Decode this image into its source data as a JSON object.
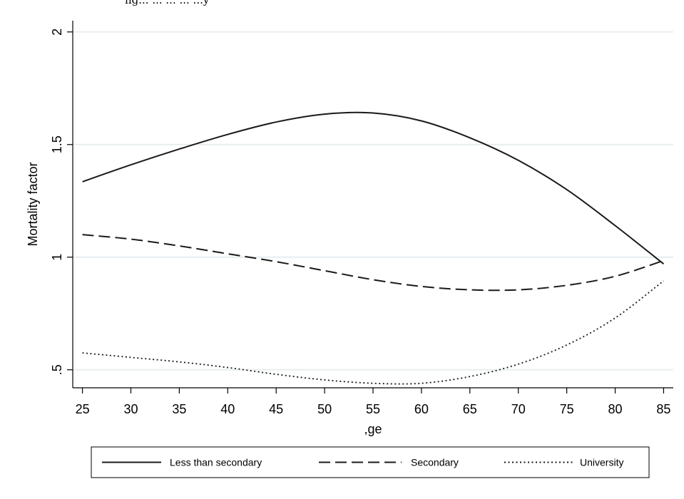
{
  "top_text": "ng... ... ... ... ...y",
  "chart_data": {
    "type": "line",
    "title": "",
    "xlabel": ",ge",
    "ylabel": "Mortality factor",
    "xlim": [
      24,
      86
    ],
    "ylim": [
      0.42,
      2.05
    ],
    "x_ticks": [
      25,
      30,
      35,
      40,
      45,
      50,
      55,
      60,
      65,
      70,
      75,
      80,
      85
    ],
    "x_tick_labels": [
      "25",
      "30",
      "35",
      "40",
      "45",
      "50",
      "55",
      "60",
      "65",
      "70",
      "75",
      "80",
      "85"
    ],
    "y_ticks": [
      0.5,
      1,
      1.5,
      2
    ],
    "y_tick_labels": [
      ".5",
      "1",
      "1.5",
      "2"
    ],
    "grid": "horizontal",
    "legend_position": "bottom",
    "x": [
      25,
      30,
      35,
      40,
      45,
      50,
      55,
      60,
      65,
      70,
      75,
      80,
      85
    ],
    "series": [
      {
        "name": "Less than secondary",
        "style": "solid",
        "values": [
          1.335,
          1.41,
          1.48,
          1.545,
          1.6,
          1.635,
          1.64,
          1.605,
          1.53,
          1.43,
          1.3,
          1.14,
          0.97
        ]
      },
      {
        "name": "Secondary",
        "style": "dashed",
        "values": [
          1.1,
          1.08,
          1.05,
          1.015,
          0.98,
          0.94,
          0.9,
          0.87,
          0.855,
          0.855,
          0.875,
          0.915,
          0.985
        ]
      },
      {
        "name": "University",
        "style": "dotted",
        "values": [
          0.575,
          0.555,
          0.535,
          0.51,
          0.48,
          0.455,
          0.44,
          0.44,
          0.47,
          0.525,
          0.61,
          0.73,
          0.895
        ]
      }
    ]
  }
}
